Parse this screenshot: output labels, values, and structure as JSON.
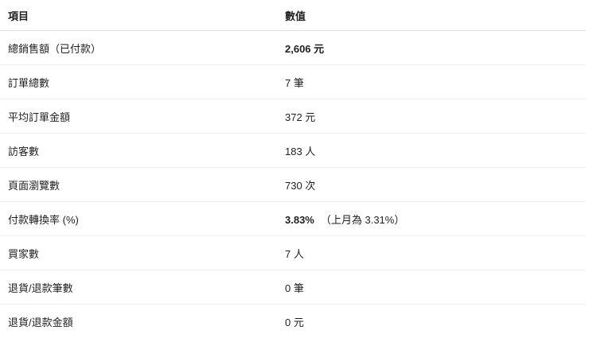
{
  "table": {
    "headers": [
      "項目",
      "數值"
    ],
    "rows": [
      {
        "label": "總銷售額（已付款）",
        "value": "2,606 元",
        "bold": true,
        "note": ""
      },
      {
        "label": "訂單總數",
        "value": "7 筆",
        "bold": false,
        "note": ""
      },
      {
        "label": "平均訂單金額",
        "value": "372 元",
        "bold": false,
        "note": ""
      },
      {
        "label": "訪客數",
        "value": "183 人",
        "bold": false,
        "note": ""
      },
      {
        "label": "頁面瀏覽數",
        "value": "730 次",
        "bold": false,
        "note": ""
      },
      {
        "label": "付款轉換率 (%)",
        "value": "3.83%",
        "bold": true,
        "note": "（上月為 3.31%）"
      },
      {
        "label": "買家數",
        "value": "7 人",
        "bold": false,
        "note": ""
      },
      {
        "label": "退貨/退款筆數",
        "value": "0 筆",
        "bold": false,
        "note": ""
      },
      {
        "label": "退貨/退款金額",
        "value": "0 元",
        "bold": false,
        "note": ""
      }
    ]
  }
}
